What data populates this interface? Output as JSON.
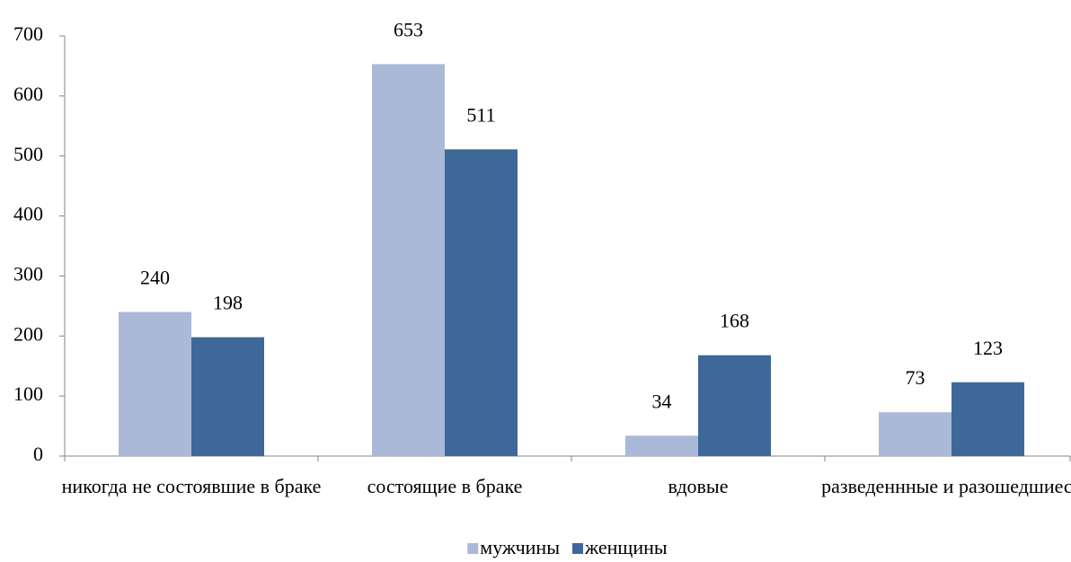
{
  "chart_data": {
    "type": "bar",
    "categories": [
      "никогда не состоявшие в браке",
      "состоящие в браке",
      "вдовые",
      "разведеннные и разошедшиеся"
    ],
    "series": [
      {
        "name": "мужчины",
        "color": "#a9b9d7",
        "values": [
          240,
          653,
          34,
          73
        ]
      },
      {
        "name": "женщины",
        "color": "#3f689a",
        "values": [
          198,
          511,
          168,
          123
        ]
      }
    ],
    "ylim": [
      0,
      700
    ],
    "yticks": [
      0,
      100,
      200,
      300,
      400,
      500,
      600,
      700
    ],
    "data_labels": true,
    "legend": "bottom",
    "grid": false
  }
}
